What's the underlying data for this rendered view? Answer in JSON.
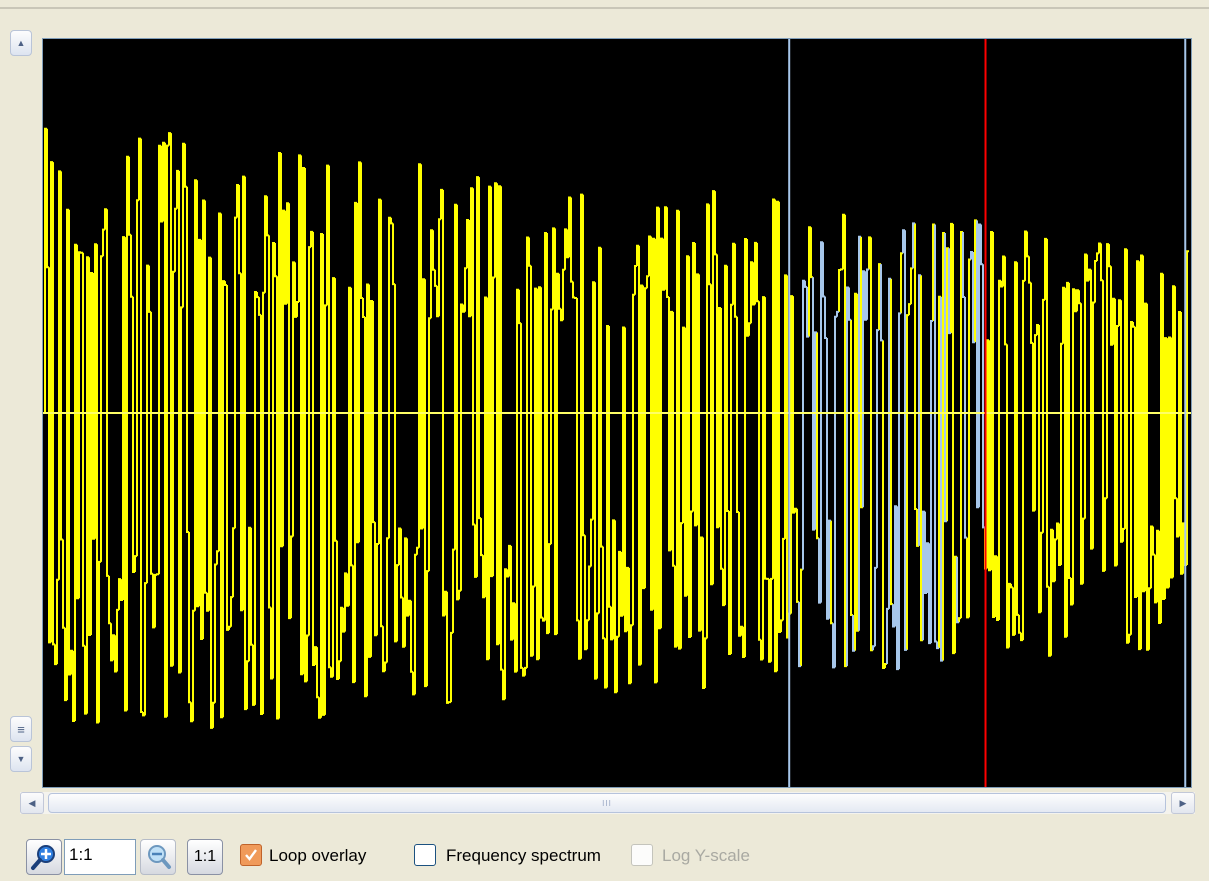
{
  "vertical_scrollbar": {
    "up_arrow": "▲",
    "down_arrow": "▼",
    "thumb_grip": "≡"
  },
  "horizontal_scrollbar": {
    "left_arrow": "◀",
    "right_arrow": "▶",
    "thumb_grip": "III"
  },
  "waveform": {
    "background": "#000000",
    "wave_color": "#ffff00",
    "loop_overlay_color": "#a7c7ea",
    "loop_start_marker_color": "#a7c7ea",
    "loop_end_marker_color": "#ff0000",
    "loop_start_fraction": 0.65,
    "loop_end_fraction": 0.821,
    "end_marker_fraction": 0.995
  },
  "toolbar": {
    "zoom_in_icon": "zoom-in-magnifier",
    "zoom_value": "1:1",
    "zoom_out_icon": "zoom-out-magnifier",
    "reset_zoom_label": "1:1",
    "loop_overlay": {
      "label": "Loop overlay",
      "checked": true
    },
    "frequency_spectrum": {
      "label": "Frequency spectrum",
      "checked": false
    },
    "log_y_scale": {
      "label": "Log Y-scale",
      "checked": false,
      "enabled": false
    }
  }
}
